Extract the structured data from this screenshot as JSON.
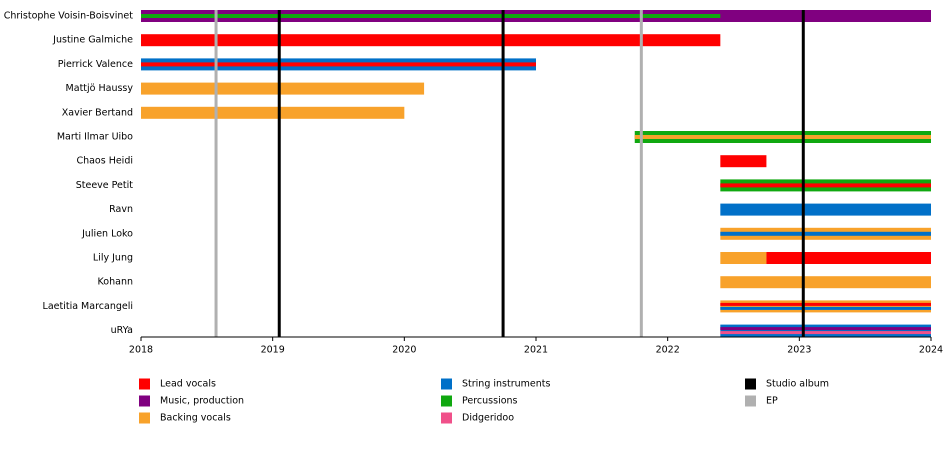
{
  "chart_data": {
    "type": "timeline",
    "xlim": [
      2018,
      2024
    ],
    "xticks": [
      2018,
      2019,
      2020,
      2021,
      2022,
      2023,
      2024
    ],
    "legend": [
      {
        "name": "Lead vocals",
        "color": "#ff0000"
      },
      {
        "name": "Music, production",
        "color": "#800080"
      },
      {
        "name": "Backing vocals",
        "color": "#f8a22b"
      },
      {
        "name": "String instruments",
        "color": "#0070c8"
      },
      {
        "name": "Percussions",
        "color": "#10a810"
      },
      {
        "name": "Didgeridoo",
        "color": "#f0508a"
      },
      {
        "name": "Studio album",
        "color": "#000000"
      },
      {
        "name": "EP",
        "color": "#b0b0b0"
      }
    ],
    "members": [
      {
        "name": "Christophe Voisin-Boisvinet",
        "bars": [
          {
            "series": 1,
            "start": 2018,
            "end": 2024
          }
        ],
        "stripes": [
          {
            "series": 4,
            "start": 2018,
            "end": 2022.4
          }
        ]
      },
      {
        "name": "Justine Galmiche",
        "bars": [
          {
            "series": 0,
            "start": 2018,
            "end": 2022.4
          }
        ],
        "stripes": []
      },
      {
        "name": "Pierrick Valence",
        "bars": [
          {
            "series": 3,
            "start": 2018,
            "end": 2021
          }
        ],
        "stripes": [
          {
            "series": 0,
            "start": 2018,
            "end": 2021
          }
        ]
      },
      {
        "name": "Mattjö Haussy",
        "bars": [
          {
            "series": 2,
            "start": 2018,
            "end": 2020.15
          }
        ],
        "stripes": []
      },
      {
        "name": "Xavier Bertand",
        "bars": [
          {
            "series": 2,
            "start": 2018,
            "end": 2020
          }
        ],
        "stripes": []
      },
      {
        "name": "Marti Ilmar Uibo",
        "bars": [
          {
            "series": 4,
            "start": 2021.75,
            "end": 2024
          }
        ],
        "stripes": [
          {
            "series": 2,
            "start": 2021.75,
            "end": 2024
          }
        ]
      },
      {
        "name": "Chaos Heidi",
        "bars": [
          {
            "series": 0,
            "start": 2022.4,
            "end": 2022.75
          }
        ],
        "stripes": []
      },
      {
        "name": "Steeve Petit",
        "bars": [
          {
            "series": 4,
            "start": 2022.4,
            "end": 2024
          }
        ],
        "stripes": [
          {
            "series": 0,
            "start": 2022.4,
            "end": 2024
          }
        ]
      },
      {
        "name": "Ravn",
        "bars": [
          {
            "series": 3,
            "start": 2022.4,
            "end": 2024
          }
        ],
        "stripes": []
      },
      {
        "name": "Julien Loko",
        "bars": [
          {
            "series": 2,
            "start": 2022.4,
            "end": 2024
          }
        ],
        "stripes": [
          {
            "series": 3,
            "start": 2022.4,
            "end": 2024
          }
        ]
      },
      {
        "name": "Lily Jung",
        "bars": [
          {
            "series": 2,
            "start": 2022.4,
            "end": 2022.75
          },
          {
            "series": 0,
            "start": 2022.75,
            "end": 2024
          }
        ],
        "stripes": []
      },
      {
        "name": "Kohann",
        "bars": [
          {
            "series": 2,
            "start": 2022.4,
            "end": 2024
          }
        ],
        "stripes": []
      },
      {
        "name": "Laetitia Marcangeli",
        "bars": [
          {
            "series": 2,
            "start": 2022.4,
            "end": 2024
          }
        ],
        "stripes": [
          {
            "series": 0,
            "start": 2022.4,
            "end": 2024
          },
          {
            "series": 3,
            "start": 2022.4,
            "end": 2024
          }
        ]
      },
      {
        "name": "uRYa",
        "bars": [
          {
            "series": 3,
            "start": 2022.4,
            "end": 2024
          }
        ],
        "stripes": [
          {
            "series": 1,
            "start": 2022.4,
            "end": 2024
          },
          {
            "series": 5,
            "start": 2022.4,
            "end": 2024
          }
        ]
      }
    ],
    "events": [
      {
        "series": 7,
        "x": 2018.57
      },
      {
        "series": 6,
        "x": 2019.05
      },
      {
        "series": 6,
        "x": 2020.75
      },
      {
        "series": 7,
        "x": 2021.8
      },
      {
        "series": 6,
        "x": 2023.03
      }
    ]
  }
}
